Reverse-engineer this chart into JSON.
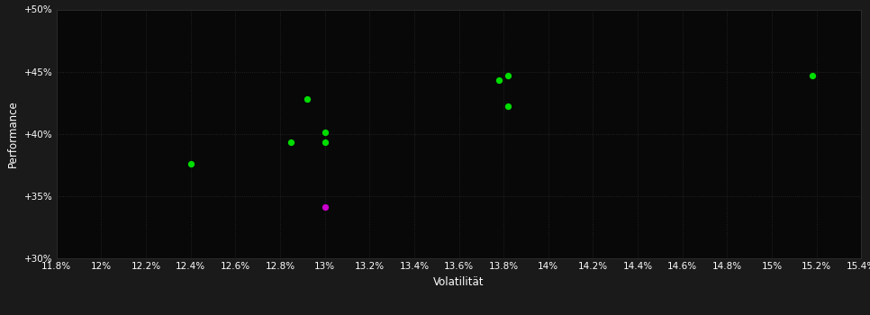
{
  "background_color": "#1a1a1a",
  "plot_bg_color": "#080808",
  "grid_color": "#2a2a2a",
  "text_color": "#ffffff",
  "xlabel": "Volatilität",
  "ylabel": "Performance",
  "xlim": [
    0.118,
    0.154
  ],
  "ylim": [
    0.3,
    0.5
  ],
  "xticks": [
    0.118,
    0.12,
    0.122,
    0.124,
    0.126,
    0.128,
    0.13,
    0.132,
    0.134,
    0.136,
    0.138,
    0.14,
    0.142,
    0.144,
    0.146,
    0.148,
    0.15,
    0.152,
    0.154
  ],
  "xtick_labels": [
    "11.8%",
    "12%",
    "12.2%",
    "12.4%",
    "12.6%",
    "12.8%",
    "13%",
    "13.2%",
    "13.4%",
    "13.6%",
    "13.8%",
    "14%",
    "14.2%",
    "14.4%",
    "14.6%",
    "14.8%",
    "15%",
    "15.2%",
    "15.4%"
  ],
  "yticks": [
    0.3,
    0.35,
    0.4,
    0.45,
    0.5
  ],
  "ytick_labels": [
    "+30%",
    "+35%",
    "+40%",
    "+45%",
    "+50%"
  ],
  "green_points": [
    [
      0.124,
      0.376
    ],
    [
      0.1285,
      0.393
    ],
    [
      0.13,
      0.393
    ],
    [
      0.13,
      0.401
    ],
    [
      0.1292,
      0.428
    ],
    [
      0.1382,
      0.422
    ],
    [
      0.1378,
      0.443
    ],
    [
      0.1382,
      0.447
    ],
    [
      0.1518,
      0.447
    ]
  ],
  "magenta_points": [
    [
      0.13,
      0.341
    ]
  ],
  "point_size": 18,
  "green_color": "#00dd00",
  "magenta_color": "#cc00cc",
  "tick_fontsize": 7.5,
  "label_fontsize": 8.5
}
